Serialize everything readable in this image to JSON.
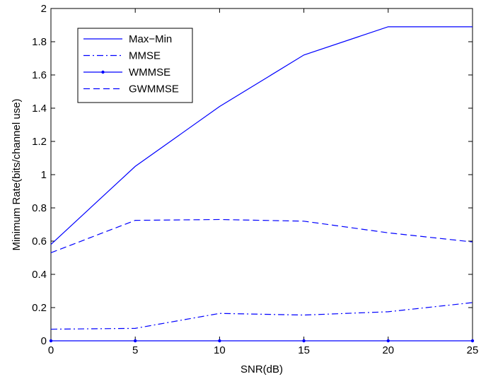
{
  "chart_data": {
    "type": "line",
    "xlabel": "SNR(dB)",
    "ylabel": "Minimum Rate(bits/channel use)",
    "xlim": [
      0,
      25
    ],
    "ylim": [
      0,
      2
    ],
    "xticks": [
      0,
      5,
      10,
      15,
      20,
      25
    ],
    "yticks": [
      0,
      0.2,
      0.4,
      0.6,
      0.8,
      1,
      1.2,
      1.4,
      1.6,
      1.8,
      2
    ],
    "xtick_labels": [
      "0",
      "5",
      "10",
      "15",
      "20",
      "25"
    ],
    "ytick_labels": [
      "0",
      "0.2",
      "0.4",
      "0.6",
      "0.8",
      "1",
      "1.2",
      "1.4",
      "1.6",
      "1.8",
      "2"
    ],
    "grid": false,
    "legend_position": "top-left",
    "line_color": "#0000ff",
    "x": [
      0,
      5,
      10,
      15,
      20,
      25
    ],
    "series": [
      {
        "name": "Max−Min",
        "style": "solid",
        "values": [
          0.58,
          1.05,
          1.41,
          1.72,
          1.89,
          1.89
        ]
      },
      {
        "name": "MMSE",
        "style": "dashdot",
        "values": [
          0.07,
          0.075,
          0.165,
          0.155,
          0.175,
          0.23
        ]
      },
      {
        "name": "WMMSE",
        "style": "solid-dot",
        "values": [
          0,
          0,
          0,
          0,
          0,
          0
        ]
      },
      {
        "name": "GWMMSE",
        "style": "dashed",
        "values": [
          0.53,
          0.725,
          0.73,
          0.72,
          0.65,
          0.595
        ]
      }
    ]
  }
}
